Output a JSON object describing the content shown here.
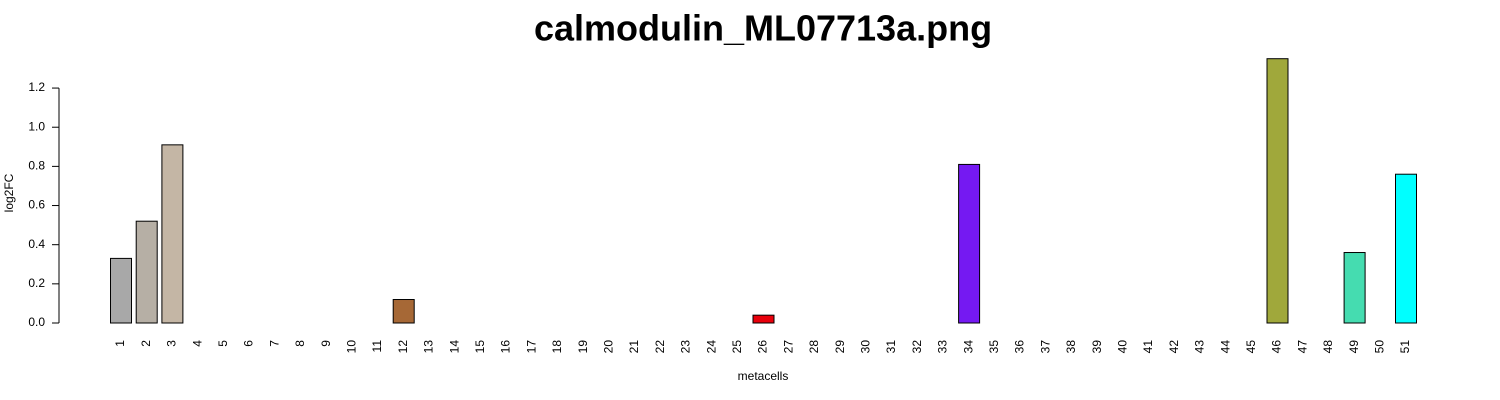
{
  "chart_data": {
    "type": "bar",
    "title": "calmodulin_ML07713a.png",
    "x_label": "metacells",
    "y_label": "log2FC",
    "categories": [
      "1",
      "2",
      "3",
      "4",
      "5",
      "6",
      "7",
      "8",
      "9",
      "10",
      "11",
      "12",
      "13",
      "14",
      "15",
      "16",
      "17",
      "18",
      "19",
      "20",
      "21",
      "22",
      "23",
      "24",
      "25",
      "26",
      "27",
      "28",
      "29",
      "30",
      "31",
      "32",
      "33",
      "34",
      "35",
      "36",
      "37",
      "38",
      "39",
      "40",
      "41",
      "42",
      "43",
      "44",
      "45",
      "46",
      "47",
      "48",
      "49",
      "50",
      "51"
    ],
    "values": [
      0.33,
      0.52,
      0.91,
      0,
      0,
      0,
      0,
      0,
      0,
      0,
      0,
      0.12,
      0,
      0,
      0,
      0,
      0,
      0,
      0,
      0,
      0,
      0,
      0,
      0,
      0,
      0.04,
      0,
      0,
      0,
      0,
      0,
      0,
      0,
      0.81,
      0,
      0,
      0,
      0,
      0,
      0,
      0,
      0,
      0,
      0,
      0,
      1.35,
      0,
      0,
      0.36,
      0,
      0.76
    ],
    "colors": [
      "#a8a8a8",
      "#b6afa5",
      "#c4b6a5",
      null,
      null,
      null,
      null,
      null,
      null,
      null,
      null,
      "#a66836",
      null,
      null,
      null,
      null,
      null,
      null,
      null,
      null,
      null,
      null,
      null,
      null,
      null,
      "#e8000b",
      null,
      null,
      null,
      null,
      null,
      null,
      null,
      "#7519f2",
      null,
      null,
      null,
      null,
      null,
      null,
      null,
      null,
      null,
      null,
      null,
      "#a0a83b",
      null,
      null,
      "#45dcb0",
      null,
      "#00ffff"
    ],
    "ylim": [
      0,
      1.35
    ],
    "yticks": [
      {
        "value": 0,
        "label": "0.0"
      },
      0.2,
      0.4,
      0.6,
      0.8,
      {
        "value": 1,
        "label": "1.0"
      },
      1.2
    ]
  }
}
